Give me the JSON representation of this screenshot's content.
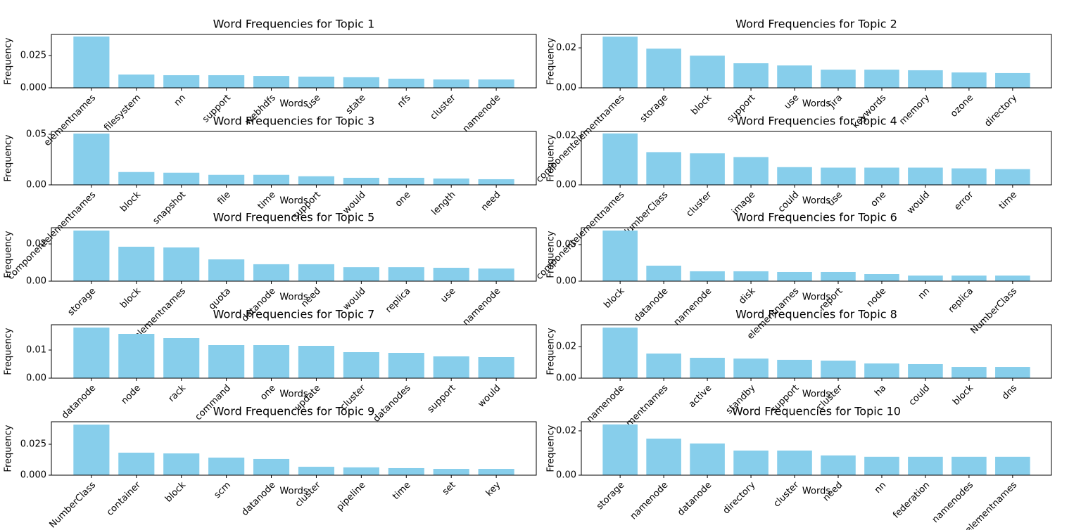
{
  "chart_data": [
    {
      "type": "bar",
      "title": "Word Frequencies for Topic 1",
      "xlabel": "Words",
      "ylabel": "Frequency",
      "color": "#87ceeb",
      "categories": [
        "elementnames",
        "filesystem",
        "nn",
        "support",
        "webhdfs",
        "use",
        "state",
        "nfs",
        "cluster",
        "namenode"
      ],
      "values": [
        0.0397,
        0.0103,
        0.0098,
        0.0098,
        0.0092,
        0.0087,
        0.0082,
        0.0071,
        0.0065,
        0.0065
      ],
      "ylim": [
        0,
        0.0413
      ],
      "yticks": [
        {
          "value": 0,
          "label": "0.000"
        },
        {
          "value": 0.025,
          "label": "0.025"
        }
      ]
    },
    {
      "type": "bar",
      "title": "Word Frequencies for Topic 2",
      "xlabel": "Words",
      "ylabel": "Frequency",
      "color": "#87ceeb",
      "categories": [
        "componentelementnames",
        "storage",
        "block",
        "support",
        "use",
        "jira",
        "keywords",
        "memory",
        "ozone",
        "directory"
      ],
      "values": [
        0.0256,
        0.0196,
        0.0161,
        0.0123,
        0.0112,
        0.0091,
        0.0091,
        0.0088,
        0.0077,
        0.0074
      ],
      "ylim": [
        0,
        0.0267
      ],
      "yticks": [
        {
          "value": 0,
          "label": "0.00"
        },
        {
          "value": 0.02,
          "label": "0.02"
        }
      ]
    },
    {
      "type": "bar",
      "title": "Word Frequencies for Topic 3",
      "xlabel": "Words",
      "ylabel": "Frequency",
      "color": "#87ceeb",
      "categories": [
        "componentelementnames",
        "block",
        "snapshot",
        "file",
        "time",
        "support",
        "would",
        "one",
        "length",
        "need"
      ],
      "values": [
        0.0507,
        0.0127,
        0.012,
        0.0099,
        0.0099,
        0.0085,
        0.007,
        0.007,
        0.0063,
        0.0056
      ],
      "ylim": [
        0,
        0.0528
      ],
      "yticks": [
        {
          "value": 0,
          "label": "0.00"
        },
        {
          "value": 0.05,
          "label": "0.05"
        }
      ]
    },
    {
      "type": "bar",
      "title": "Word Frequencies for Topic 4",
      "xlabel": "Words",
      "ylabel": "Frequency",
      "color": "#87ceeb",
      "categories": [
        "componentelementnames",
        "NumberClass",
        "cluster",
        "image",
        "could",
        "use",
        "one",
        "would",
        "error",
        "time"
      ],
      "values": [
        0.0209,
        0.0133,
        0.0128,
        0.0113,
        0.0072,
        0.007,
        0.007,
        0.007,
        0.0067,
        0.0064
      ],
      "ylim": [
        0,
        0.0217
      ],
      "yticks": [
        {
          "value": 0,
          "label": "0.00"
        },
        {
          "value": 0.02,
          "label": "0.02"
        }
      ]
    },
    {
      "type": "bar",
      "title": "Word Frequencies for Topic 5",
      "xlabel": "Words",
      "ylabel": "Frequency",
      "color": "#87ceeb",
      "categories": [
        "storage",
        "block",
        "elementnames",
        "quota",
        "datanode",
        "need",
        "would",
        "replica",
        "use",
        "namenode"
      ],
      "values": [
        0.0272,
        0.0185,
        0.0181,
        0.0117,
        0.0091,
        0.0091,
        0.0075,
        0.0075,
        0.0072,
        0.0068
      ],
      "ylim": [
        0,
        0.0287
      ],
      "yticks": [
        {
          "value": 0,
          "label": "0.00"
        },
        {
          "value": 0.02,
          "label": "0.02"
        }
      ]
    },
    {
      "type": "bar",
      "title": "Word Frequencies for Topic 6",
      "xlabel": "Words",
      "ylabel": "Frequency",
      "color": "#87ceeb",
      "categories": [
        "block",
        "datanode",
        "namenode",
        "disk",
        "elementnames",
        "report",
        "node",
        "nn",
        "replica",
        "NumberClass"
      ],
      "values": [
        0.0692,
        0.0212,
        0.0135,
        0.0135,
        0.0125,
        0.0125,
        0.0096,
        0.0077,
        0.0077,
        0.0077
      ],
      "ylim": [
        0,
        0.073
      ],
      "yticks": [
        {
          "value": 0,
          "label": "0.00"
        },
        {
          "value": 0.05,
          "label": "0.05"
        }
      ]
    },
    {
      "type": "bar",
      "title": "Word Frequencies for Topic 7",
      "xlabel": "Words",
      "ylabel": "Frequency",
      "color": "#87ceeb",
      "categories": [
        "datanode",
        "node",
        "rack",
        "command",
        "one",
        "update",
        "cluster",
        "datanodes",
        "support",
        "would"
      ],
      "values": [
        0.018,
        0.01575,
        0.01425,
        0.01175,
        0.01175,
        0.0115,
        0.00925,
        0.009,
        0.00775,
        0.0075
      ],
      "ylim": [
        0,
        0.019
      ],
      "yticks": [
        {
          "value": 0,
          "label": "0.00"
        },
        {
          "value": 0.01,
          "label": "0.01"
        }
      ]
    },
    {
      "type": "bar",
      "title": "Word Frequencies for Topic 8",
      "xlabel": "Words",
      "ylabel": "Frequency",
      "color": "#87ceeb",
      "categories": [
        "namenode",
        "elementnames",
        "active",
        "standby",
        "support",
        "cluster",
        "ha",
        "could",
        "block",
        "dns"
      ],
      "values": [
        0.032,
        0.0156,
        0.0129,
        0.0124,
        0.0116,
        0.0111,
        0.0093,
        0.0089,
        0.0071,
        0.0071
      ],
      "ylim": [
        0,
        0.0338
      ],
      "yticks": [
        {
          "value": 0,
          "label": "0.00"
        },
        {
          "value": 0.02,
          "label": "0.02"
        }
      ]
    },
    {
      "type": "bar",
      "title": "Word Frequencies for Topic 9",
      "xlabel": "Words",
      "ylabel": "Frequency",
      "color": "#87ceeb",
      "categories": [
        "NumberClass",
        "container",
        "block",
        "scm",
        "datanode",
        "cluster",
        "pipeline",
        "time",
        "set",
        "key"
      ],
      "values": [
        0.0409,
        0.0182,
        0.0176,
        0.0142,
        0.0131,
        0.0068,
        0.0063,
        0.0057,
        0.0051,
        0.0051
      ],
      "ylim": [
        0,
        0.0432
      ],
      "yticks": [
        {
          "value": 0,
          "label": "0.000"
        },
        {
          "value": 0.025,
          "label": "0.025"
        }
      ]
    },
    {
      "type": "bar",
      "title": "Word Frequencies for Topic 10",
      "xlabel": "Words",
      "ylabel": "Frequency",
      "color": "#87ceeb",
      "categories": [
        "storage",
        "namenode",
        "datanode",
        "directory",
        "cluster",
        "need",
        "nn",
        "federation",
        "namenodes",
        "elementnames"
      ],
      "values": [
        0.0229,
        0.0165,
        0.0143,
        0.0111,
        0.0111,
        0.0089,
        0.0083,
        0.0083,
        0.0083,
        0.0083
      ],
      "ylim": [
        0,
        0.0241
      ],
      "yticks": [
        {
          "value": 0,
          "label": "0.00"
        },
        {
          "value": 0.02,
          "label": "0.02"
        }
      ]
    }
  ]
}
